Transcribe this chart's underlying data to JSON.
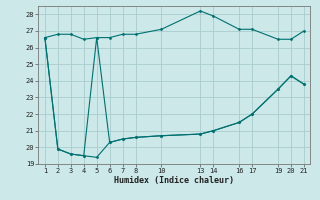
{
  "xlabel": "Humidex (Indice chaleur)",
  "bg_color": "#cce8e8",
  "grid_color": "#aacccc",
  "line_color": "#007070",
  "xlim": [
    0.5,
    21.5
  ],
  "ylim": [
    19,
    28.5
  ],
  "xticks": [
    1,
    2,
    3,
    4,
    5,
    6,
    7,
    8,
    10,
    13,
    14,
    16,
    17,
    19,
    20,
    21
  ],
  "yticks": [
    19,
    20,
    21,
    22,
    23,
    24,
    25,
    26,
    27,
    28
  ],
  "series": [
    {
      "x": [
        1,
        2,
        3,
        4,
        5,
        6,
        7,
        8,
        10,
        13,
        14,
        16,
        17,
        19,
        20,
        21
      ],
      "y": [
        26.6,
        26.8,
        26.8,
        26.5,
        26.6,
        26.6,
        26.8,
        26.8,
        27.1,
        28.2,
        27.9,
        27.1,
        27.1,
        26.5,
        26.5,
        27.0
      ]
    },
    {
      "x": [
        1,
        2,
        3,
        4,
        5,
        6,
        7,
        8,
        10,
        13,
        14,
        16,
        17,
        19,
        20,
        21
      ],
      "y": [
        26.6,
        19.9,
        19.6,
        19.5,
        26.6,
        20.3,
        20.5,
        20.6,
        20.7,
        20.8,
        21.0,
        21.5,
        22.0,
        23.5,
        24.3,
        23.8
      ]
    },
    {
      "x": [
        1,
        2,
        3,
        4,
        5,
        6,
        7,
        8,
        10,
        13,
        14,
        16,
        17,
        19,
        20,
        21
      ],
      "y": [
        26.6,
        19.9,
        19.6,
        19.5,
        19.4,
        20.3,
        20.5,
        20.6,
        20.7,
        20.8,
        21.0,
        21.5,
        22.0,
        23.5,
        24.3,
        23.8
      ]
    }
  ]
}
